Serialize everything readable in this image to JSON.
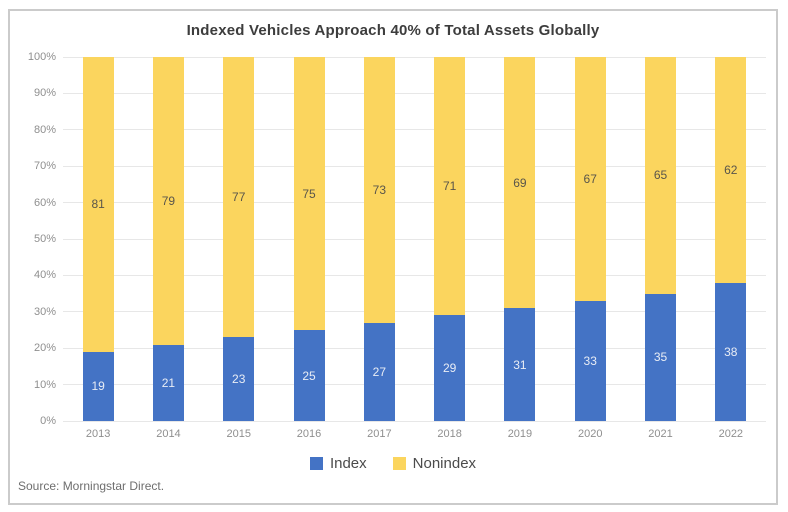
{
  "title": "Indexed Vehicles Approach 40% of Total Assets Globally",
  "source_note": "Source: Morningstar Direct.",
  "y_axis_ticks": [
    "100%",
    "90%",
    "80%",
    "70%",
    "60%",
    "50%",
    "40%",
    "30%",
    "20%",
    "10%",
    "0%"
  ],
  "colors": {
    "index_blue": "#4473C5",
    "nonindex_yellow": "#FBD55E",
    "gridline": "#e7e7e7",
    "border": "#cbcbcb"
  },
  "chart_data": {
    "type": "bar",
    "stacked": true,
    "title": "Indexed Vehicles Approach 40% of Total Assets Globally",
    "categories": [
      "2013",
      "2014",
      "2015",
      "2016",
      "2017",
      "2018",
      "2019",
      "2020",
      "2021",
      "2022"
    ],
    "series": [
      {
        "name": "Index",
        "color": "#4473C5",
        "values": [
          19,
          21,
          23,
          25,
          27,
          29,
          31,
          33,
          35,
          38
        ]
      },
      {
        "name": "Nonindex",
        "color": "#FBD55E",
        "values": [
          81,
          79,
          77,
          75,
          73,
          71,
          69,
          67,
          65,
          62
        ]
      }
    ],
    "xlabel": "",
    "ylabel": "",
    "ylim": [
      0,
      100
    ],
    "y_tick_interval": 10,
    "grid": true,
    "data_labels": "centered-in-segment",
    "legend_position": "bottom"
  }
}
